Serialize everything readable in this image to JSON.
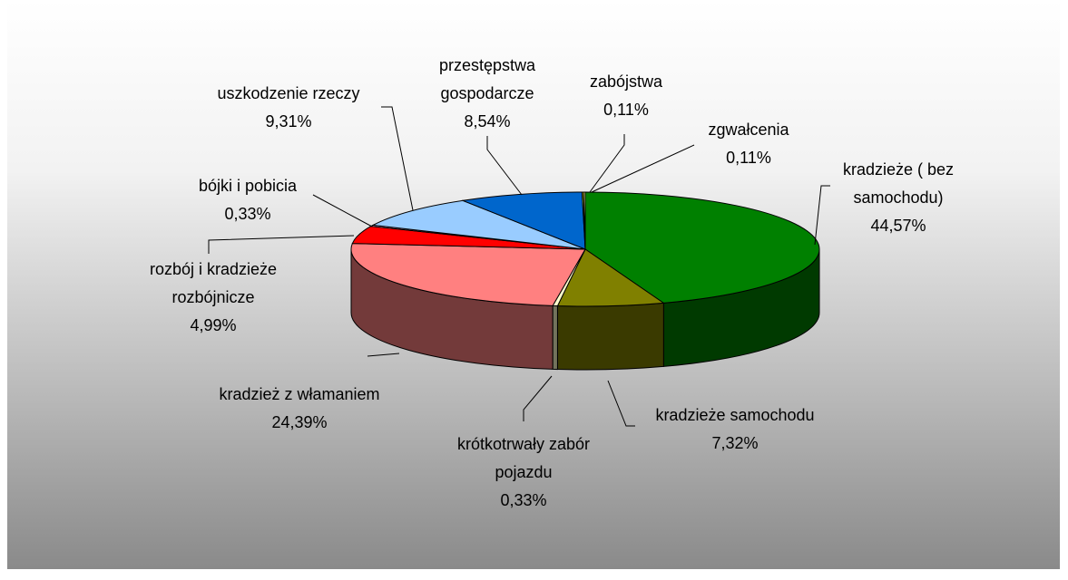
{
  "chart_data": {
    "type": "pie3d",
    "categories": [
      "kradzieże ( bez samochodu)",
      "kradzieże samochodu",
      "krótkotrwały zabór pojazdu",
      "kradzież z włamaniem",
      "rozbój i kradzieże rozbójnicze",
      "bójki i pobicia",
      "uszkodzenie rzeczy",
      "przestępstwa gospodarcze",
      "zabójstwa",
      "zgwałcenia"
    ],
    "values": [
      44.57,
      7.32,
      0.33,
      24.39,
      4.99,
      0.33,
      9.31,
      8.54,
      0.11,
      0.11
    ],
    "value_labels": [
      "44,57%",
      "7,32%",
      "0,33%",
      "24,39%",
      "4,99%",
      "0,33%",
      "9,31%",
      "8,54%",
      "0,11%",
      "0,11%"
    ],
    "colors": [
      "#008000",
      "#808000",
      "#ffffcc",
      "#ff8080",
      "#ff0000",
      "#ffccff",
      "#99ccff",
      "#0066cc",
      "#cccc00",
      "#ffff99"
    ]
  }
}
